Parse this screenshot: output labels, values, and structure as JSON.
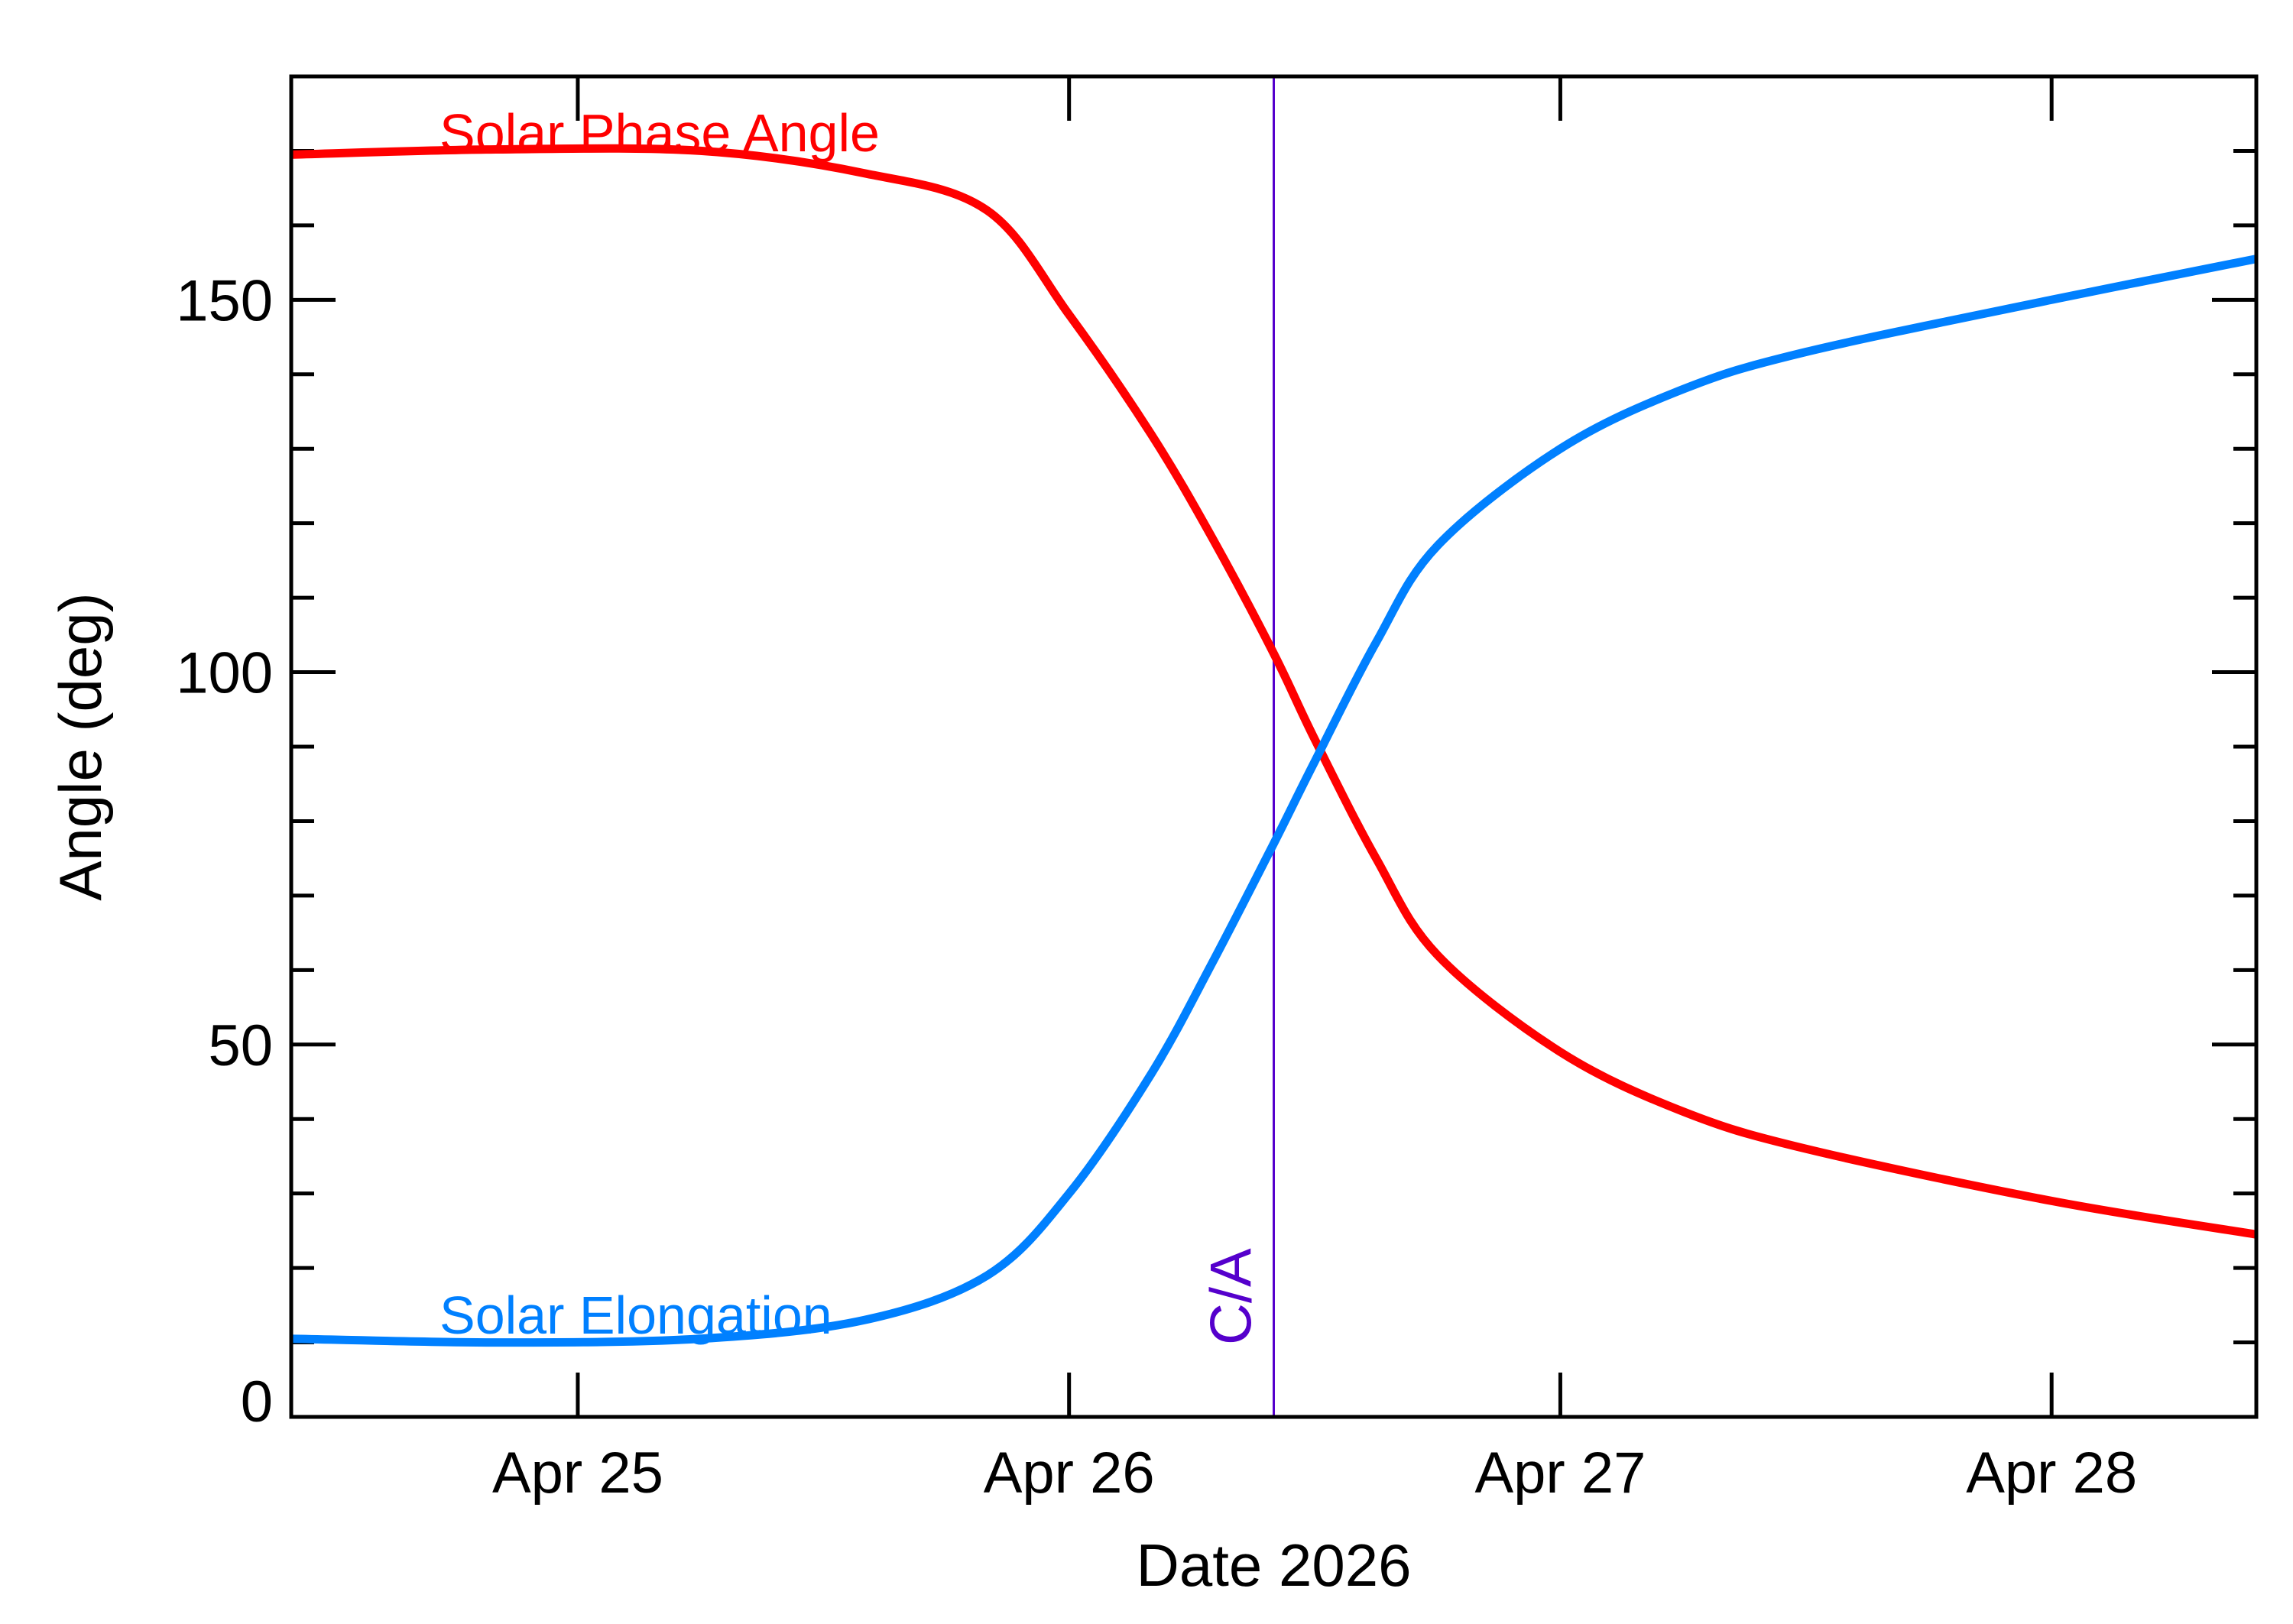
{
  "chart_data": {
    "type": "line",
    "xlabel": "Date 2026",
    "ylabel": "Angle (deg)",
    "x_unit": "date",
    "xlim": [
      "2026-04-24 10:00",
      "2026-04-28 10:00"
    ],
    "ylim": [
      0,
      180
    ],
    "x_ticks": [
      {
        "date": "2026-04-25 00:00",
        "label": "Apr 25"
      },
      {
        "date": "2026-04-26 00:00",
        "label": "Apr 26"
      },
      {
        "date": "2026-04-27 00:00",
        "label": "Apr 27"
      },
      {
        "date": "2026-04-28 00:00",
        "label": "Apr 28"
      }
    ],
    "y_ticks": [
      0,
      50,
      100,
      150
    ],
    "y_minor_step": 10,
    "grid": false,
    "legend": "inline labels near curves",
    "series": [
      {
        "name": "Solar Phase Angle",
        "color": "#ff0000",
        "points": [
          [
            "2026-04-24 10:00",
            169.5
          ],
          [
            "2026-04-24 20:00",
            170.2
          ],
          [
            "2026-04-25 06:00",
            170.0
          ],
          [
            "2026-04-25 14:00",
            167.0
          ],
          [
            "2026-04-25 20:00",
            162.0
          ],
          [
            "2026-04-26 00:00",
            148.0
          ],
          [
            "2026-04-26 04:00",
            132.0
          ],
          [
            "2026-04-26 07:00",
            118.0
          ],
          [
            "2026-04-26 10:00",
            102.5
          ],
          [
            "2026-04-26 12:00",
            91.0
          ],
          [
            "2026-04-26 15:00",
            75.0
          ],
          [
            "2026-04-26 18:00",
            62.0
          ],
          [
            "2026-04-27 00:00",
            49.0
          ],
          [
            "2026-04-27 06:00",
            41.0
          ],
          [
            "2026-04-27 12:00",
            36.0
          ],
          [
            "2026-04-28 00:00",
            29.0
          ],
          [
            "2026-04-28 10:00",
            24.5
          ]
        ]
      },
      {
        "name": "Solar Elongation",
        "color": "#0080ff",
        "points": [
          [
            "2026-04-24 10:00",
            10.5
          ],
          [
            "2026-04-24 20:00",
            10.0
          ],
          [
            "2026-04-25 06:00",
            10.5
          ],
          [
            "2026-04-25 14:00",
            13.0
          ],
          [
            "2026-04-25 20:00",
            19.0
          ],
          [
            "2026-04-26 00:00",
            30.0
          ],
          [
            "2026-04-26 04:00",
            46.0
          ],
          [
            "2026-04-26 07:00",
            61.0
          ],
          [
            "2026-04-26 10:00",
            77.0
          ],
          [
            "2026-04-26 12:00",
            88.0
          ],
          [
            "2026-04-26 15:00",
            104.0
          ],
          [
            "2026-04-26 18:00",
            117.0
          ],
          [
            "2026-04-27 00:00",
            130.0
          ],
          [
            "2026-04-27 06:00",
            138.0
          ],
          [
            "2026-04-27 12:00",
            143.0
          ],
          [
            "2026-04-28 00:00",
            150.0
          ],
          [
            "2026-04-28 10:00",
            155.5
          ]
        ]
      }
    ],
    "annotations": [
      {
        "label": "C/A",
        "type": "vline",
        "date": "2026-04-26 10:00",
        "color": "#5500cc"
      }
    ]
  }
}
